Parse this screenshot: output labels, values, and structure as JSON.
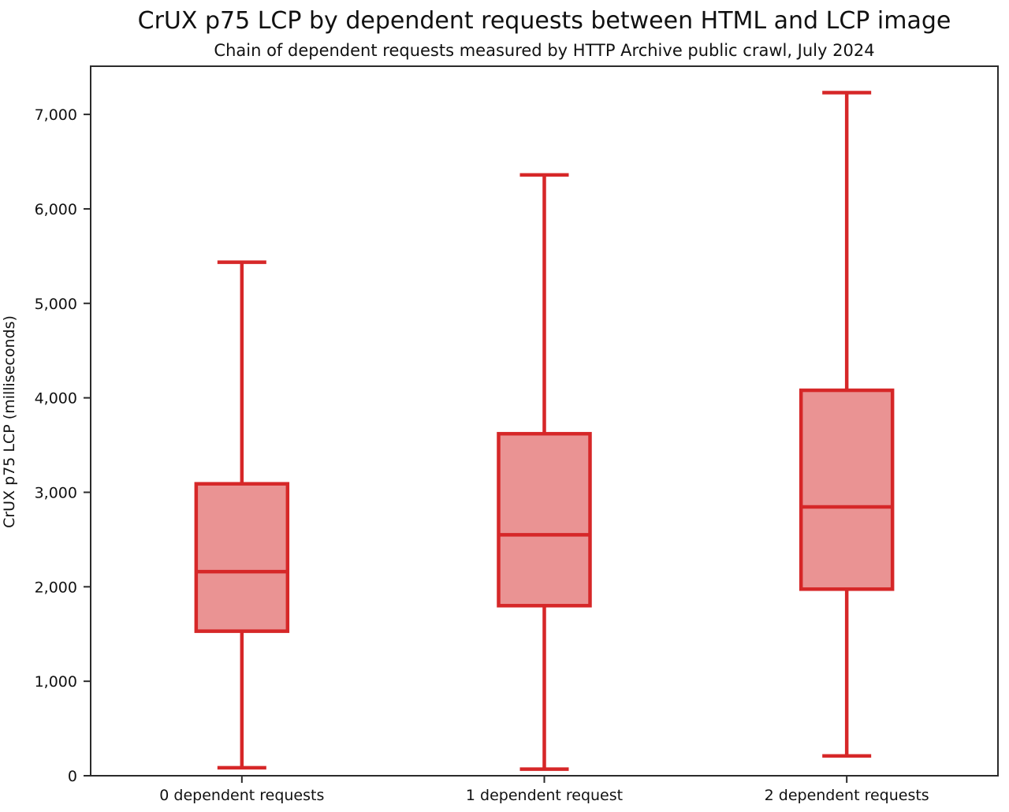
{
  "chart_data": {
    "type": "boxplot",
    "title": "CrUX p75 LCP by dependent requests between HTML and LCP image",
    "subtitle": "Chain of dependent requests measured by HTTP Archive public crawl, July 2024",
    "ylabel": "CrUX p75 LCP (milliseconds)",
    "xlabel": "",
    "categories": [
      "0 dependent requests",
      "1 dependent request",
      "2 dependent requests"
    ],
    "series": [
      {
        "category": "0 dependent requests",
        "whisker_low": 85,
        "q1": 1530,
        "median": 2160,
        "q3": 3090,
        "whisker_high": 5435
      },
      {
        "category": "1 dependent request",
        "whisker_low": 70,
        "q1": 1800,
        "median": 2550,
        "q3": 3620,
        "whisker_high": 6360
      },
      {
        "category": "2 dependent requests",
        "whisker_low": 210,
        "q1": 1975,
        "median": 2845,
        "q3": 4080,
        "whisker_high": 7230
      }
    ],
    "ylim": [
      0,
      7510
    ],
    "yticks": [
      0,
      1000,
      2000,
      3000,
      4000,
      5000,
      6000,
      7000
    ],
    "ytick_labels": [
      "0",
      "1,000",
      "2,000",
      "3,000",
      "4,000",
      "5,000",
      "6,000",
      "7,000"
    ],
    "grid": false,
    "legend": null,
    "units": "milliseconds",
    "colors": {
      "box_line": "#d62728",
      "box_fill": "#ea9393",
      "spine": "#2b2b2b",
      "text": "#111111"
    }
  }
}
